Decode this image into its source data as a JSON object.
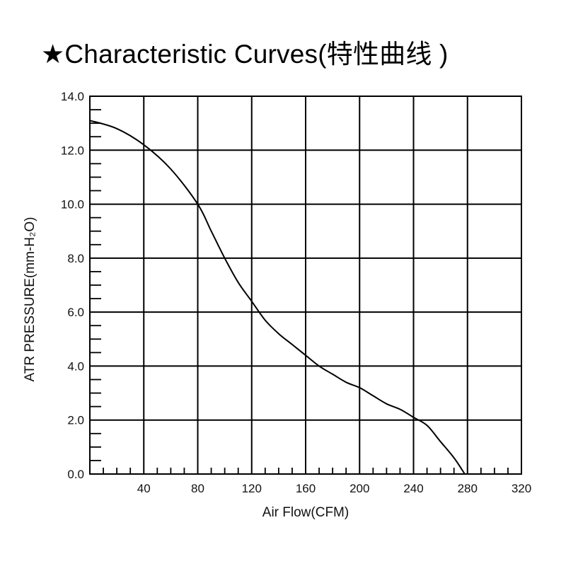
{
  "chart_data": {
    "type": "line",
    "title": "★Characteristic Curves(特性曲线 )",
    "xlabel": "Air Flow(CFM)",
    "ylabel": "ATR PRESSURE(mm-H₂O)",
    "xlim": [
      0,
      320
    ],
    "ylim": [
      0,
      14
    ],
    "x_ticks": [
      "40",
      "80",
      "120",
      "160",
      "200",
      "240",
      "280",
      "320"
    ],
    "y_ticks": [
      "0.0",
      "2.0",
      "4.0",
      "6.0",
      "8.0",
      "10.0",
      "12.0",
      "14.0"
    ],
    "grid": true,
    "series": [
      {
        "x": [
          0,
          20,
          40,
          60,
          80,
          90,
          100,
          110,
          120,
          130,
          140,
          150,
          160,
          170,
          180,
          190,
          200,
          210,
          220,
          230,
          240,
          250,
          260,
          270,
          278
        ],
        "y": [
          13.1,
          12.8,
          12.2,
          11.3,
          10.0,
          9.0,
          8.0,
          7.1,
          6.4,
          5.7,
          5.2,
          4.8,
          4.4,
          4.0,
          3.7,
          3.4,
          3.2,
          2.9,
          2.6,
          2.4,
          2.1,
          1.8,
          1.2,
          0.6,
          0.0
        ],
        "color": "#000000"
      }
    ]
  }
}
